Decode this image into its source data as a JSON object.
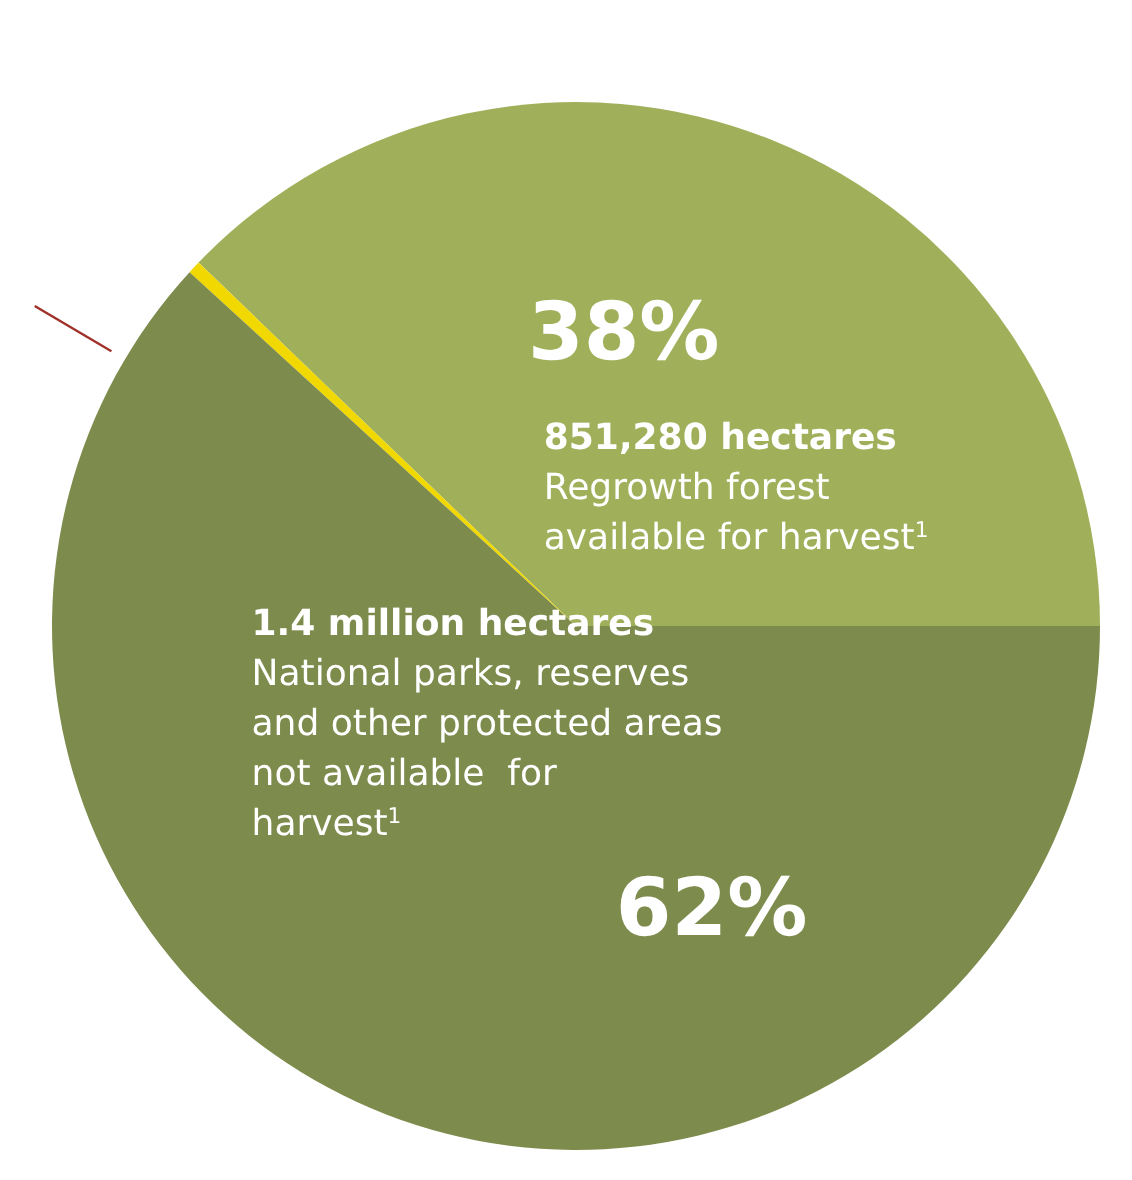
{
  "chart_data": {
    "type": "pie",
    "categories": [
      "Regrowth forest available for harvest$^{1}$",
      null,
      "National parks, reserves and other protected areas not available  for harvest$^{1}$"
    ],
    "values": [
      37.8,
      0.4,
      61.8
    ],
    "colors": [
      "#a0b05a",
      "#f0d800",
      "#7d8b4c"
    ],
    "value_labels": [
      "38%",
      null,
      "62%"
    ],
    "annotations": [
      "851,280 hectares",
      "1.4 million hectares"
    ]
  }
}
